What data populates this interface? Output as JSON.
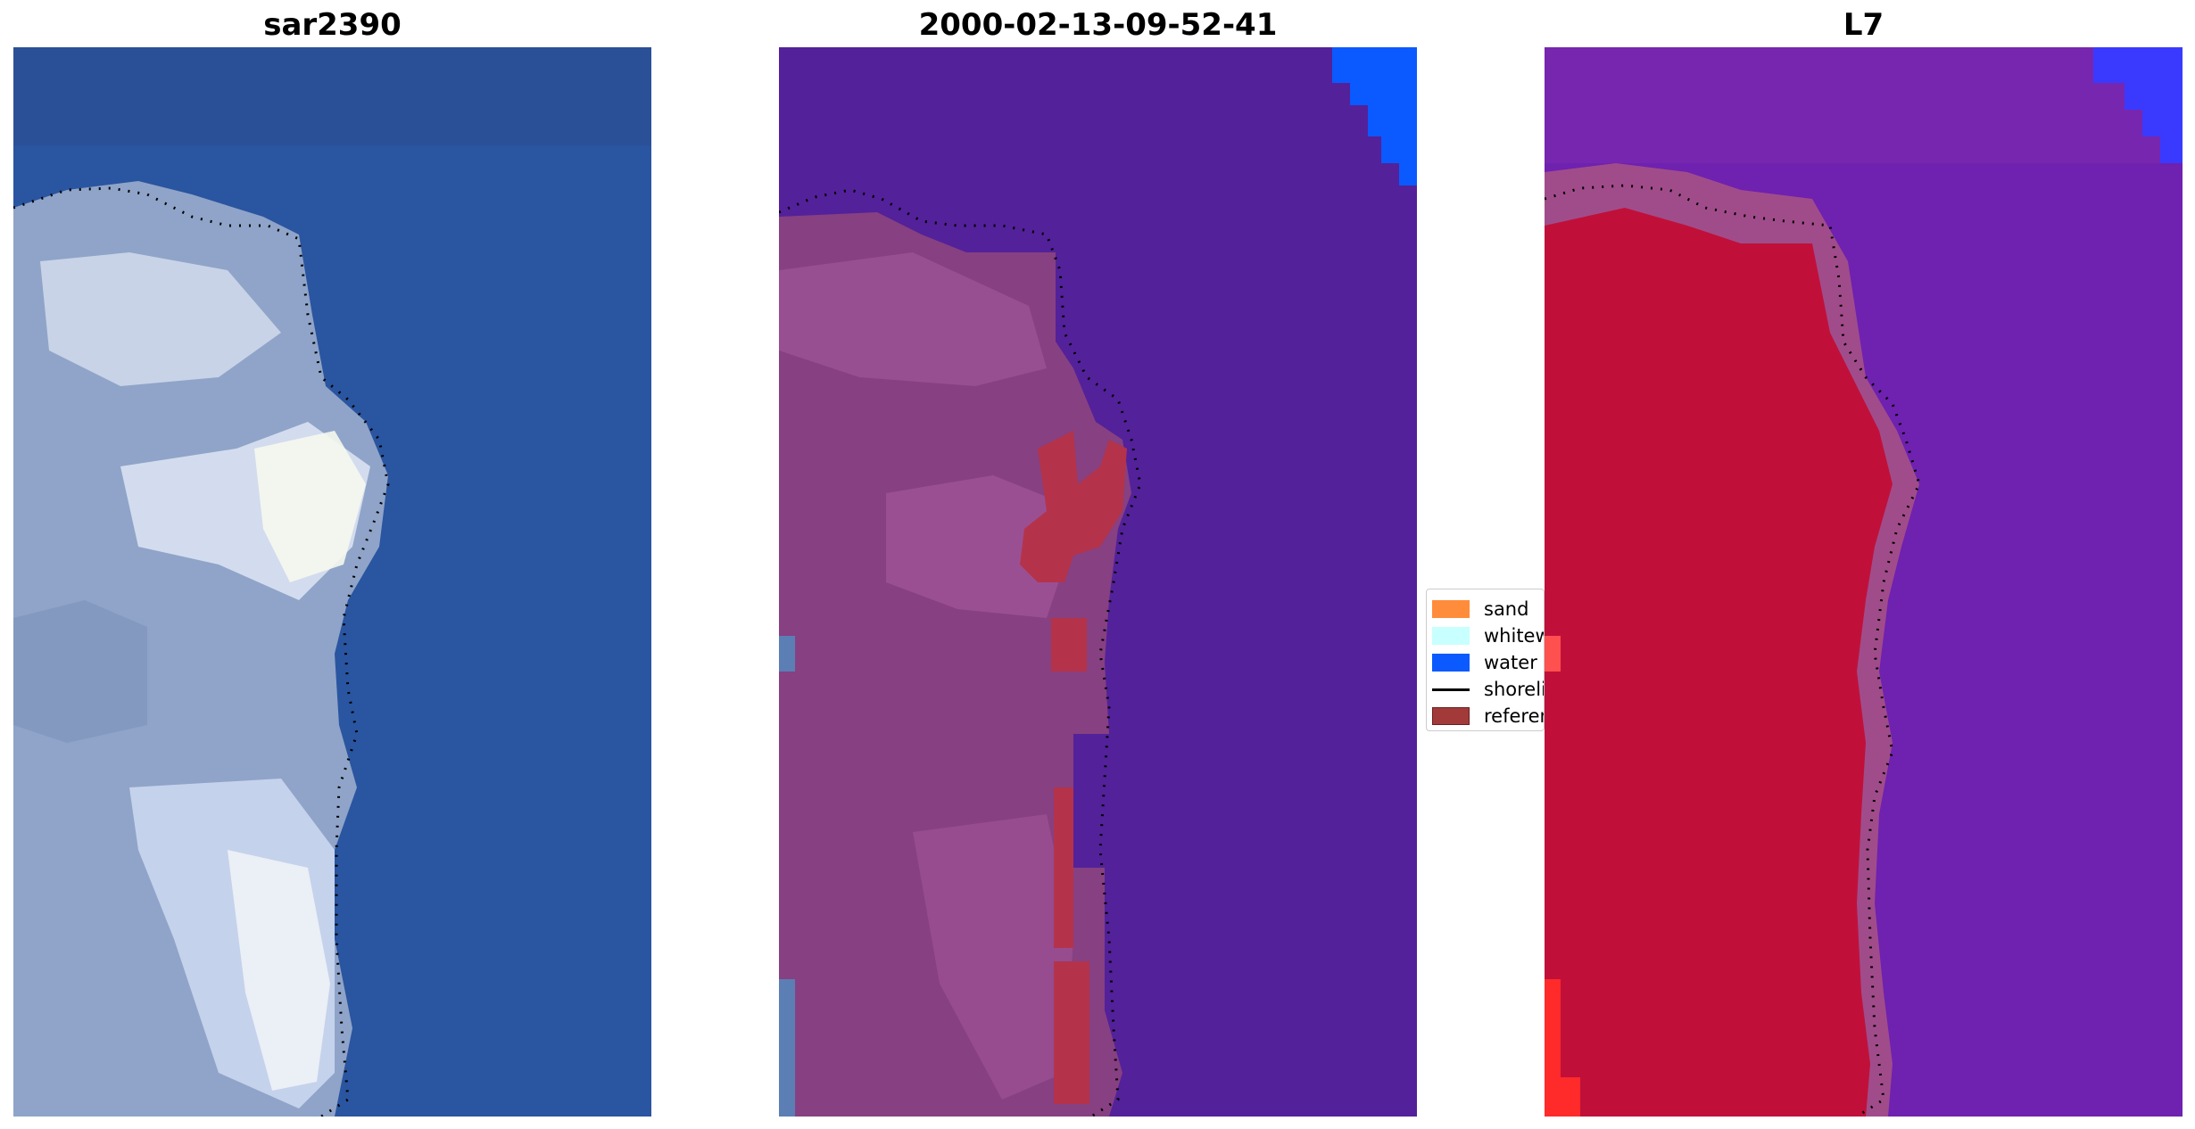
{
  "panels": [
    {
      "title": "sar2390",
      "type": "rgb-image"
    },
    {
      "title": "2000-02-13-09-52-41",
      "type": "classification-overlay"
    },
    {
      "title": "L7",
      "type": "index-map"
    }
  ],
  "legend": {
    "entries": [
      {
        "label": "sand",
        "kind": "patch",
        "color": "#ff8c3a"
      },
      {
        "label": "whitewater",
        "kind": "patch",
        "color": "#c8ffff"
      },
      {
        "label": "water",
        "kind": "patch",
        "color": "#0a5aff"
      },
      {
        "label": "shoreline",
        "kind": "line",
        "color": "#000000"
      },
      {
        "label": "reference shoreline",
        "kind": "patch",
        "color": "#a23a3a"
      }
    ]
  },
  "colors": {
    "sea_blue": "#2a55a0",
    "land_gray": "#8fa4c8",
    "whitewater": "#f0f4f8",
    "class_background": "#53219a",
    "class_land": "#874081",
    "class_ref": "#b4334a",
    "class_water": "#0a5aff",
    "index_sea": "#6f21b0",
    "index_land": "#c0103a",
    "index_edge": "#a14c8a"
  }
}
